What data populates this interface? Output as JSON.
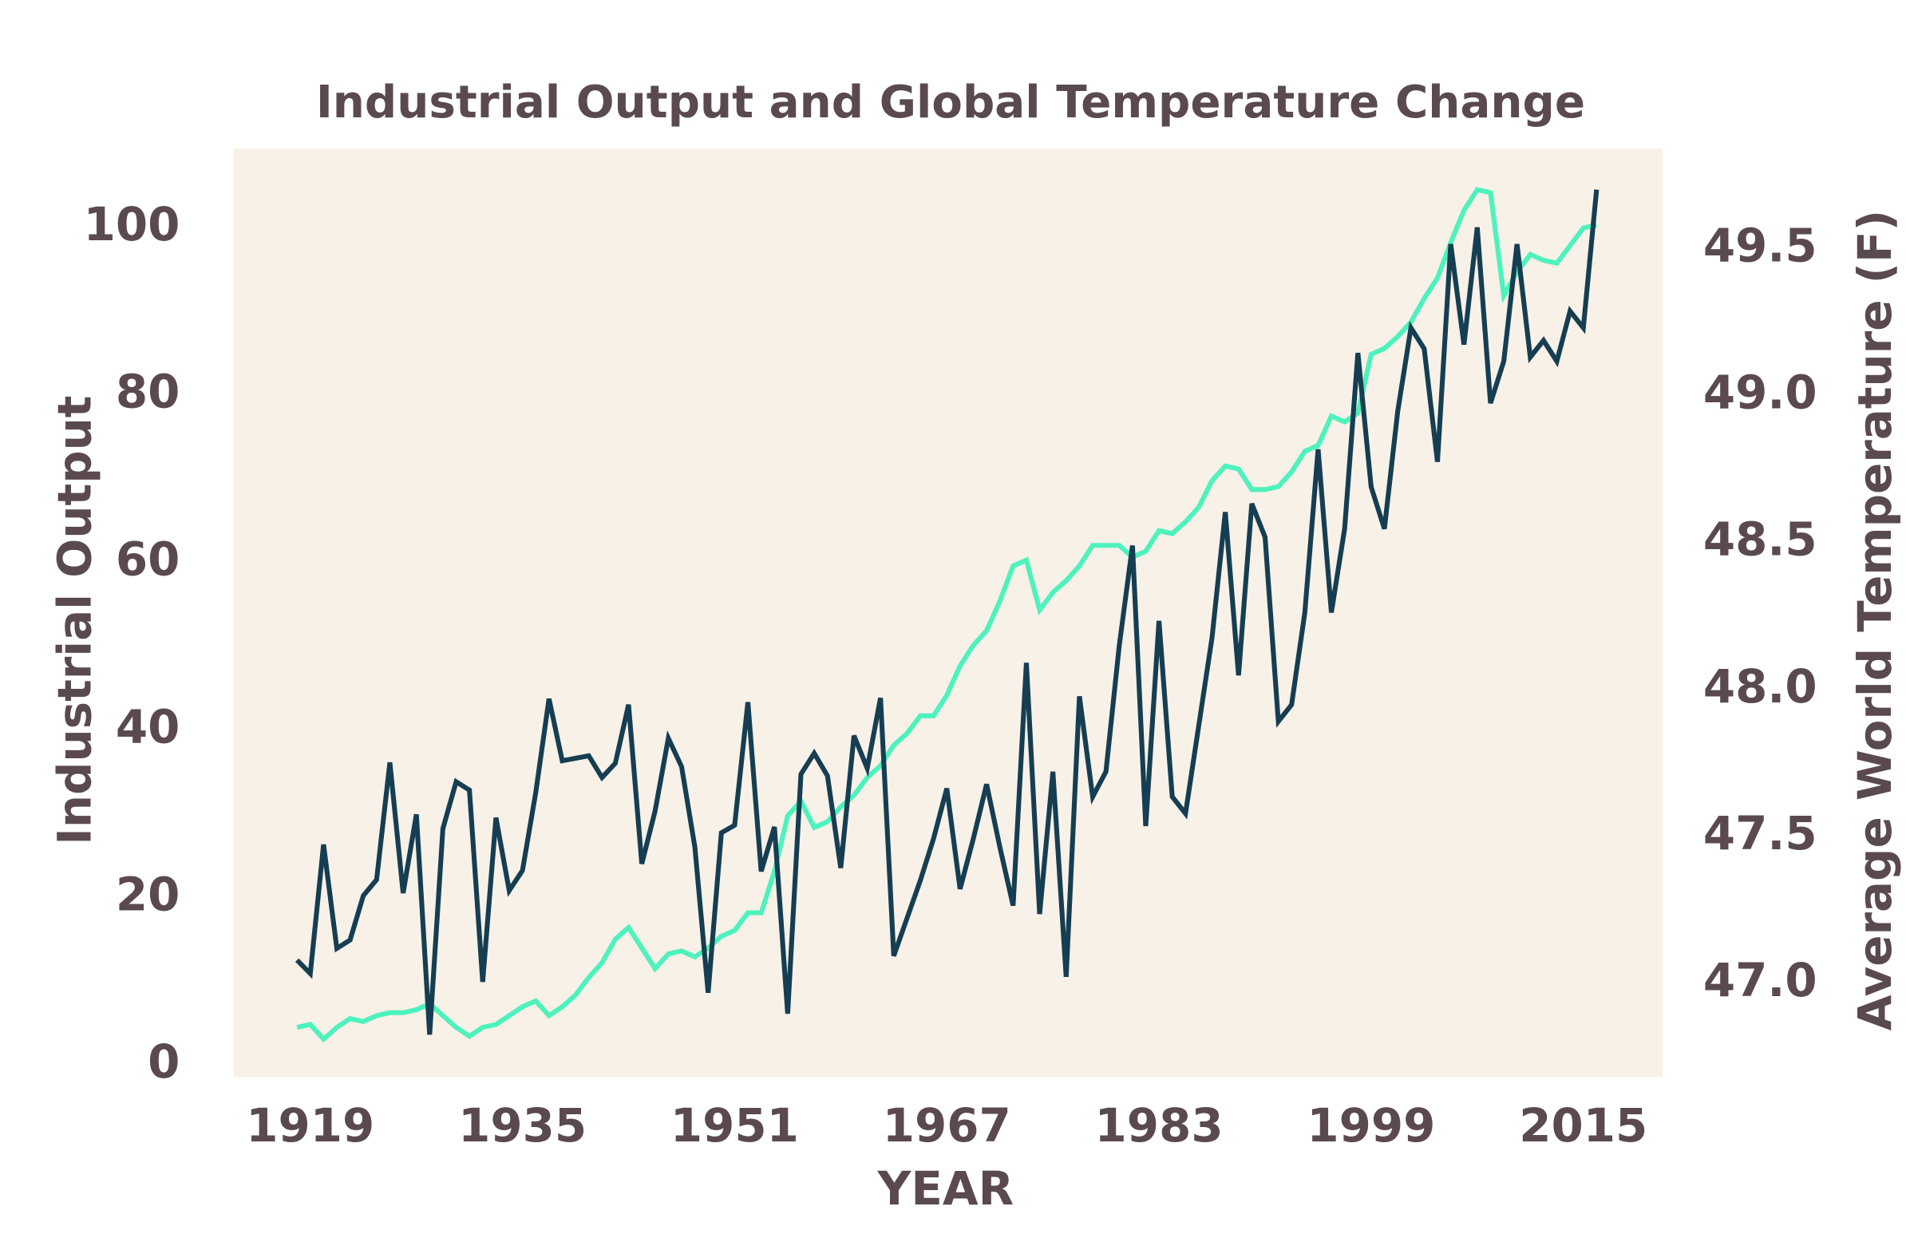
{
  "chart_data": {
    "type": "line",
    "title": "Industrial Output and Global Temperature Change",
    "x_label": "YEAR",
    "y_label": "Industrial Output",
    "y2_label": "Average World Temperature (F)",
    "x": [
      1918,
      1919,
      1920,
      1921,
      1922,
      1923,
      1924,
      1925,
      1926,
      1927,
      1928,
      1929,
      1930,
      1931,
      1932,
      1933,
      1934,
      1935,
      1936,
      1937,
      1938,
      1939,
      1940,
      1941,
      1942,
      1943,
      1944,
      1945,
      1946,
      1947,
      1948,
      1949,
      1950,
      1951,
      1952,
      1953,
      1954,
      1955,
      1956,
      1957,
      1958,
      1959,
      1960,
      1961,
      1962,
      1963,
      1964,
      1965,
      1966,
      1967,
      1968,
      1969,
      1970,
      1971,
      1972,
      1973,
      1974,
      1975,
      1976,
      1977,
      1978,
      1979,
      1980,
      1981,
      1982,
      1983,
      1984,
      1985,
      1986,
      1987,
      1988,
      1989,
      1990,
      1991,
      1992,
      1993,
      1994,
      1995,
      1996,
      1997,
      1998,
      1999,
      2000,
      2001,
      2002,
      2003,
      2004,
      2005,
      2006,
      2007,
      2008,
      2009,
      2010,
      2011,
      2012,
      2013,
      2014,
      2015,
      2016
    ],
    "series": [
      {
        "color": "#163e52",
        "axis": "y",
        "values": [
          12.5,
          10.9,
          26.3,
          13.9,
          14.9,
          20.2,
          22.1,
          36.1,
          20.5,
          29.9,
          3.6,
          28.2,
          33.8,
          32.8,
          9.9,
          29.5,
          20.8,
          23.2,
          32.5,
          43.7,
          36.3,
          36.6,
          36.9,
          34.3,
          36.0,
          43.0,
          24.0,
          30.3,
          39.0,
          35.6,
          26.0,
          8.6,
          27.7,
          28.6,
          43.3,
          23.1,
          28.4,
          6.1,
          34.7,
          37.2,
          34.5,
          23.5,
          39.3,
          35.4,
          43.8,
          13,
          17.5,
          22,
          27,
          33,
          21,
          27,
          33.5,
          26,
          19,
          48,
          18,
          35,
          10.5,
          44,
          32,
          35,
          50,
          62,
          28.5,
          53,
          32,
          30,
          40.5,
          51,
          66,
          46.5,
          67,
          63,
          41,
          43,
          54,
          73.5,
          54,
          64,
          85,
          69,
          64,
          78,
          88,
          85.5,
          72,
          98,
          86,
          100,
          79,
          84,
          98,
          84.5,
          86.5,
          84,
          90,
          88,
          104.5
        ]
      },
      {
        "color": "#4df2bd",
        "axis": "y2",
        "values": [
          46.85,
          46.86,
          46.81,
          46.85,
          46.88,
          46.87,
          46.89,
          46.9,
          46.9,
          46.91,
          46.93,
          46.89,
          46.85,
          46.82,
          46.85,
          46.86,
          46.89,
          46.92,
          46.94,
          46.89,
          46.92,
          46.96,
          47.02,
          47.07,
          47.15,
          47.19,
          47.12,
          47.05,
          47.1,
          47.11,
          47.09,
          47.12,
          47.16,
          47.18,
          47.24,
          47.24,
          47.38,
          47.57,
          47.62,
          47.53,
          47.55,
          47.6,
          47.64,
          47.7,
          47.74,
          47.81,
          47.85,
          47.91,
          47.91,
          47.98,
          48.08,
          48.15,
          48.2,
          48.3,
          48.42,
          48.44,
          48.27,
          48.33,
          48.37,
          48.42,
          48.49,
          48.49,
          48.49,
          48.45,
          48.47,
          48.54,
          48.53,
          48.57,
          48.62,
          48.71,
          48.76,
          48.75,
          48.68,
          48.68,
          48.69,
          48.74,
          48.81,
          48.83,
          48.93,
          48.91,
          48.94,
          49.14,
          49.16,
          49.2,
          49.25,
          49.33,
          49.4,
          49.52,
          49.63,
          49.7,
          49.69,
          49.34,
          49.42,
          49.48,
          49.46,
          49.45,
          49.51,
          49.57,
          49.58
        ]
      }
    ],
    "xlim": [
      1913.2,
      2021
    ],
    "xticks": [
      1919,
      1935,
      1951,
      1967,
      1983,
      1999,
      2015
    ],
    "ylim": [
      -1.5,
      109.4
    ],
    "yticks": [
      0,
      20,
      40,
      60,
      80,
      100
    ],
    "y2lim": [
      46.68,
      49.84
    ],
    "y2ticks": [
      {
        "value": 47,
        "label": "47.0"
      },
      47.5,
      {
        "value": 48,
        "label": "48.0"
      },
      48.5,
      {
        "value": 49,
        "label": "49.0"
      },
      49.5
    ],
    "background": "#f8f1e8",
    "grid": false
  }
}
